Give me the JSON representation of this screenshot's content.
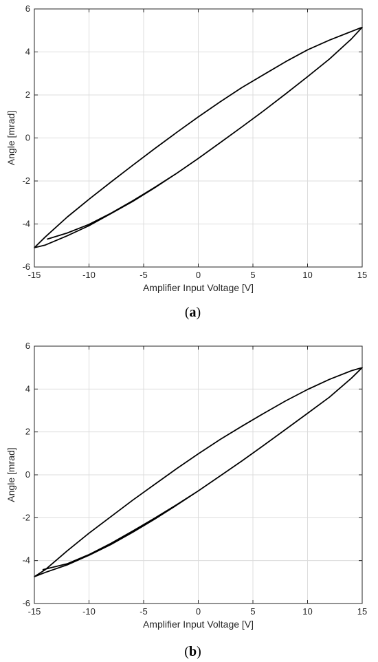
{
  "chart_data": [
    {
      "type": "line",
      "panel_label": "a",
      "xlabel": "Amplifier Input Voltage [V]",
      "ylabel": "Angle [mrad]",
      "xlim": [
        -15,
        15
      ],
      "ylim": [
        -6,
        6
      ],
      "xticks": [
        -15,
        -10,
        -5,
        0,
        5,
        10,
        15
      ],
      "yticks": [
        -6,
        -4,
        -2,
        0,
        2,
        4,
        6
      ],
      "grid": true,
      "series": [
        {
          "x": [
            -13.8,
            -12,
            -10,
            -8,
            -6,
            -4,
            -2,
            0,
            2,
            4,
            6,
            8,
            10,
            12,
            14,
            15,
            14,
            12,
            10,
            8,
            6,
            4,
            2,
            0,
            -2,
            -4,
            -6,
            -8,
            -10,
            -12,
            -14,
            -15,
            -14,
            -12,
            -10,
            -8,
            -6,
            -4,
            -2,
            0,
            2,
            4,
            6,
            8,
            10,
            12,
            14,
            15
          ],
          "y": [
            -4.7,
            -4.42,
            -4.02,
            -3.5,
            -2.92,
            -2.3,
            -1.65,
            -0.95,
            -0.22,
            0.52,
            1.27,
            2.05,
            2.85,
            3.67,
            4.6,
            5.15,
            4.95,
            4.55,
            4.1,
            3.55,
            2.95,
            2.35,
            1.68,
            0.98,
            0.25,
            -0.5,
            -1.27,
            -2.05,
            -2.85,
            -3.68,
            -4.6,
            -5.1,
            -4.98,
            -4.55,
            -4.08,
            -3.52,
            -2.95,
            -2.32,
            -1.65,
            -0.95,
            -0.22,
            0.52,
            1.27,
            2.05,
            2.85,
            3.67,
            4.6,
            5.15
          ]
        }
      ]
    },
    {
      "type": "line",
      "panel_label": "b",
      "xlabel": "Amplifier Input Voltage [V]",
      "ylabel": "Angle [mrad]",
      "xlim": [
        -15,
        15
      ],
      "ylim": [
        -6,
        6
      ],
      "xticks": [
        -15,
        -10,
        -5,
        0,
        5,
        10,
        15
      ],
      "yticks": [
        -6,
        -4,
        -2,
        0,
        2,
        4,
        6
      ],
      "grid": true,
      "series": [
        {
          "x": [
            -14.2,
            -12,
            -10,
            -8,
            -6,
            -4,
            -2,
            0,
            2,
            4,
            6,
            8,
            10,
            12,
            14,
            15,
            14,
            12,
            10,
            8,
            6,
            4,
            2,
            0,
            -2,
            -4,
            -6,
            -8,
            -10,
            -12,
            -14,
            -15,
            -14,
            -12,
            -10,
            -8,
            -6,
            -4,
            -2,
            0,
            2,
            4,
            6,
            8,
            10,
            12,
            14,
            15
          ],
          "y": [
            -4.42,
            -4.15,
            -3.72,
            -3.2,
            -2.62,
            -2.02,
            -1.4,
            -0.75,
            -0.05,
            0.65,
            1.38,
            2.12,
            2.87,
            3.62,
            4.5,
            5.0,
            4.85,
            4.45,
            3.98,
            3.45,
            2.87,
            2.27,
            1.65,
            0.98,
            0.28,
            -0.45,
            -1.18,
            -1.95,
            -2.72,
            -3.55,
            -4.42,
            -4.75,
            -4.55,
            -4.2,
            -3.75,
            -3.25,
            -2.68,
            -2.07,
            -1.42,
            -0.75,
            -0.05,
            0.65,
            1.38,
            2.12,
            2.87,
            3.62,
            4.5,
            5.0
          ]
        }
      ]
    }
  ]
}
